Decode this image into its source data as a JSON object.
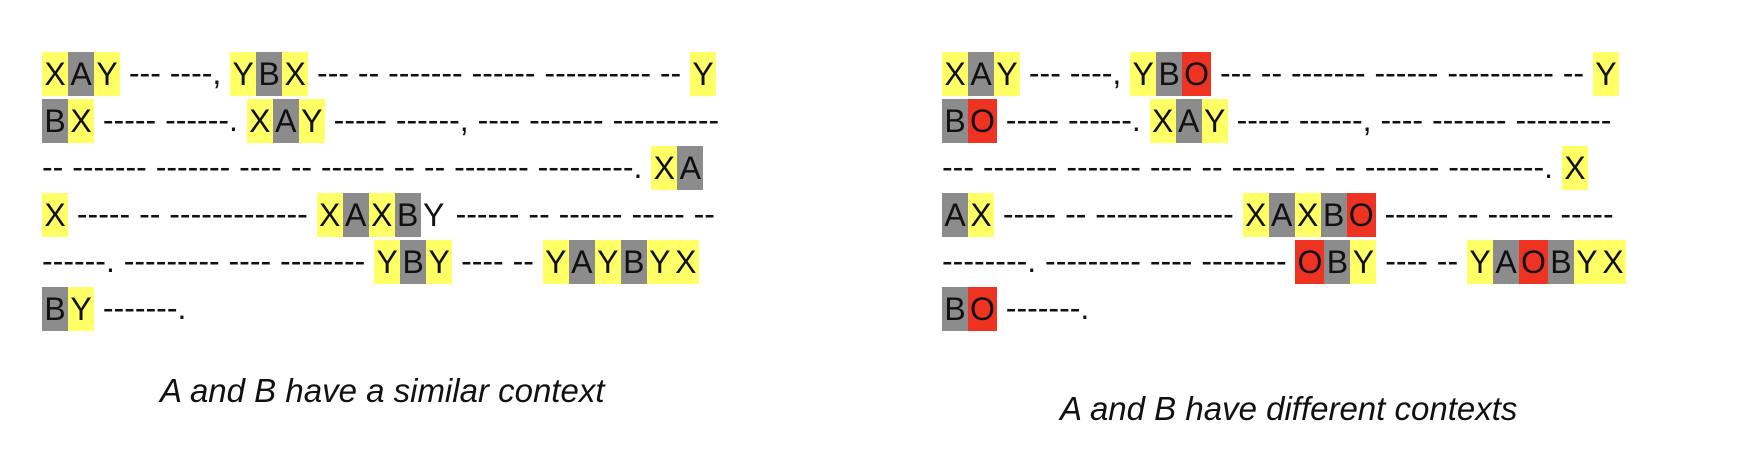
{
  "panels": [
    {
      "id": "left",
      "caption": "A and B have a similar context",
      "lines": [
        [
          [
            "X",
            "y"
          ],
          [
            "A",
            "g"
          ],
          [
            "Y",
            "y"
          ],
          [
            " --- ----, ",
            "t"
          ],
          [
            "Y",
            "y"
          ],
          [
            "B",
            "g"
          ],
          [
            "X",
            "y"
          ],
          [
            " --- -- ------- ------ ---------- -- ",
            "t"
          ],
          [
            "Y",
            "y"
          ]
        ],
        [
          [
            "B",
            "g"
          ],
          [
            "X",
            "y"
          ],
          [
            " ----- ------. ",
            "t"
          ],
          [
            "X",
            "y"
          ],
          [
            "A",
            "g"
          ],
          [
            "Y",
            "y"
          ],
          [
            " ----- ------, ---- ------- ----------",
            "t"
          ]
        ],
        [
          [
            "-- ------- ------- ---- -- ------ -- -- ------- ---------. ",
            "t"
          ],
          [
            "X",
            "y"
          ],
          [
            "A",
            "g"
          ]
        ],
        [
          [
            "X",
            "y"
          ],
          [
            " ----- -- ------------- ",
            "t"
          ],
          [
            "X",
            "y"
          ],
          [
            "A",
            "g"
          ],
          [
            "X",
            "y"
          ],
          [
            "B",
            "g"
          ],
          [
            "Y",
            "n"
          ],
          [
            " ------ -- ------ ----- --",
            "t"
          ]
        ],
        [
          [
            "------. --------- ---- -------- ",
            "t"
          ],
          [
            "Y",
            "y"
          ],
          [
            "B",
            "g"
          ],
          [
            "Y",
            "y"
          ],
          [
            " ---- -- ",
            "t"
          ],
          [
            "Y",
            "y"
          ],
          [
            "A",
            "g"
          ],
          [
            "Y",
            "y"
          ],
          [
            "B",
            "g"
          ],
          [
            "Y",
            "y"
          ],
          [
            "X",
            "y"
          ]
        ],
        [
          [
            "B",
            "g"
          ],
          [
            "Y",
            "y"
          ],
          [
            " -------.",
            "t"
          ]
        ]
      ]
    },
    {
      "id": "right",
      "caption": "A and B have different  contexts",
      "lines": [
        [
          [
            "X",
            "y"
          ],
          [
            "A",
            "g"
          ],
          [
            "Y",
            "y"
          ],
          [
            " --- ----, ",
            "t"
          ],
          [
            "Y",
            "y"
          ],
          [
            "B",
            "g"
          ],
          [
            "O",
            "r"
          ],
          [
            " --- -- ------- ------ ---------- -- ",
            "t"
          ],
          [
            "Y",
            "y"
          ]
        ],
        [
          [
            "B",
            "g"
          ],
          [
            "O",
            "r"
          ],
          [
            " ----- ------. ",
            "t"
          ],
          [
            "X",
            "y"
          ],
          [
            "A",
            "g"
          ],
          [
            "Y",
            "y"
          ],
          [
            " ----- ------, ---- ------- ---------",
            "t"
          ]
        ],
        [
          [
            "--- ------- ------- ---- -- ------ -- -- ------- ---------. ",
            "t"
          ],
          [
            "X",
            "y"
          ]
        ],
        [
          [
            "A",
            "g"
          ],
          [
            "X",
            "y"
          ],
          [
            " ----- -- ------------- ",
            "t"
          ],
          [
            "X",
            "y"
          ],
          [
            "A",
            "g"
          ],
          [
            "X",
            "y"
          ],
          [
            "B",
            "g"
          ],
          [
            "O",
            "r"
          ],
          [
            " ------ -- ------ -----",
            "t"
          ]
        ],
        [
          [
            "--------. --------- ---- -------- ",
            "t"
          ],
          [
            "O",
            "r"
          ],
          [
            "B",
            "g"
          ],
          [
            "Y",
            "y"
          ],
          [
            " ---- -- ",
            "t"
          ],
          [
            "Y",
            "y"
          ],
          [
            "A",
            "g"
          ],
          [
            "O",
            "r"
          ],
          [
            "B",
            "g"
          ],
          [
            "Y",
            "y"
          ],
          [
            "X",
            "y"
          ]
        ],
        [
          [
            "B",
            "g"
          ],
          [
            "O",
            "r"
          ],
          [
            " -------.",
            "t"
          ]
        ]
      ]
    }
  ]
}
